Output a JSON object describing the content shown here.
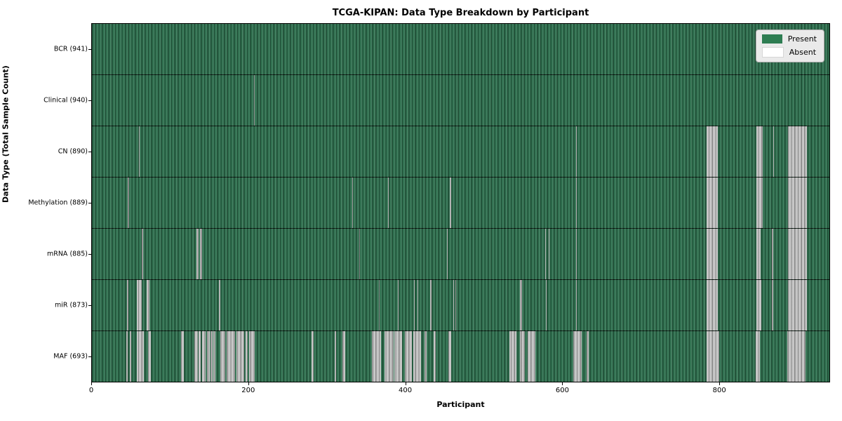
{
  "chart_data": {
    "type": "heatmap",
    "title": "TCGA-KIPAN: Data Type Breakdown by Participant",
    "xlabel": "Participant",
    "ylabel": "Data Type (Total Sample Count)",
    "x_ticks": [
      0,
      200,
      400,
      600,
      800
    ],
    "xlim": [
      0,
      941
    ],
    "n_participants": 941,
    "grid": "row-dividers",
    "legend_position": "upper right",
    "legend": [
      {
        "label": "Present",
        "color": "#2e7d52"
      },
      {
        "label": "Absent",
        "color": "#ffffff"
      }
    ],
    "colors": {
      "present_green": "#2e6f4e",
      "absent_stripe_gray": "#c2c2c2",
      "legend_background": "#eaeaea",
      "figure_background": "#ffffff"
    },
    "rows": [
      {
        "label": "BCR (941)",
        "data_type": "BCR",
        "present_count": 941,
        "absent_ranges": []
      },
      {
        "label": "Clinical (940)",
        "data_type": "Clinical",
        "present_count": 940,
        "absent_ranges": [
          [
            207,
            208
          ]
        ]
      },
      {
        "label": "CN (890)",
        "data_type": "CN",
        "present_count": 890,
        "absent_ranges": [
          [
            60,
            61
          ],
          [
            618,
            619
          ],
          [
            784,
            799
          ],
          [
            848,
            856
          ],
          [
            869,
            870
          ],
          [
            888,
            912
          ]
        ]
      },
      {
        "label": "Methylation (889)",
        "data_type": "Methylation",
        "present_count": 889,
        "absent_ranges": [
          [
            46,
            47
          ],
          [
            332,
            333
          ],
          [
            378,
            379
          ],
          [
            457,
            458
          ],
          [
            618,
            619
          ],
          [
            784,
            799
          ],
          [
            848,
            856
          ],
          [
            888,
            912
          ]
        ]
      },
      {
        "label": "mRNA (885)",
        "data_type": "mRNA",
        "present_count": 885,
        "absent_ranges": [
          [
            64,
            65
          ],
          [
            133,
            136
          ],
          [
            138,
            141
          ],
          [
            341,
            342
          ],
          [
            453,
            454
          ],
          [
            578,
            579
          ],
          [
            583,
            584
          ],
          [
            618,
            619
          ],
          [
            784,
            799
          ],
          [
            848,
            853
          ],
          [
            868,
            869
          ],
          [
            888,
            912
          ]
        ]
      },
      {
        "label": "miR (873)",
        "data_type": "miR",
        "present_count": 873,
        "absent_ranges": [
          [
            45,
            47
          ],
          [
            57,
            64
          ],
          [
            70,
            73
          ],
          [
            162,
            164
          ],
          [
            366,
            367
          ],
          [
            390,
            391
          ],
          [
            411,
            412
          ],
          [
            415,
            416
          ],
          [
            432,
            433
          ],
          [
            461,
            462
          ],
          [
            464,
            465
          ],
          [
            546,
            549
          ],
          [
            579,
            580
          ],
          [
            618,
            619
          ],
          [
            784,
            799
          ],
          [
            848,
            854
          ],
          [
            868,
            869
          ],
          [
            888,
            912
          ]
        ]
      },
      {
        "label": "MAF (693)",
        "data_type": "MAF",
        "present_count": 693,
        "absent_ranges": [
          [
            44,
            46
          ],
          [
            48,
            50
          ],
          [
            57,
            66
          ],
          [
            72,
            75
          ],
          [
            114,
            117
          ],
          [
            131,
            135
          ],
          [
            136,
            139
          ],
          [
            141,
            145
          ],
          [
            147,
            150
          ],
          [
            151,
            154
          ],
          [
            155,
            158
          ],
          [
            164,
            170
          ],
          [
            172,
            183
          ],
          [
            184,
            194
          ],
          [
            196,
            199
          ],
          [
            201,
            208
          ],
          [
            280,
            283
          ],
          [
            310,
            312
          ],
          [
            320,
            323
          ],
          [
            357,
            369
          ],
          [
            373,
            385
          ],
          [
            386,
            396
          ],
          [
            399,
            408
          ],
          [
            410,
            420
          ],
          [
            424,
            427
          ],
          [
            436,
            439
          ],
          [
            455,
            458
          ],
          [
            533,
            542
          ],
          [
            546,
            552
          ],
          [
            556,
            566
          ],
          [
            614,
            625
          ],
          [
            631,
            634
          ],
          [
            784,
            800
          ],
          [
            847,
            852
          ],
          [
            887,
            911
          ]
        ]
      }
    ]
  }
}
